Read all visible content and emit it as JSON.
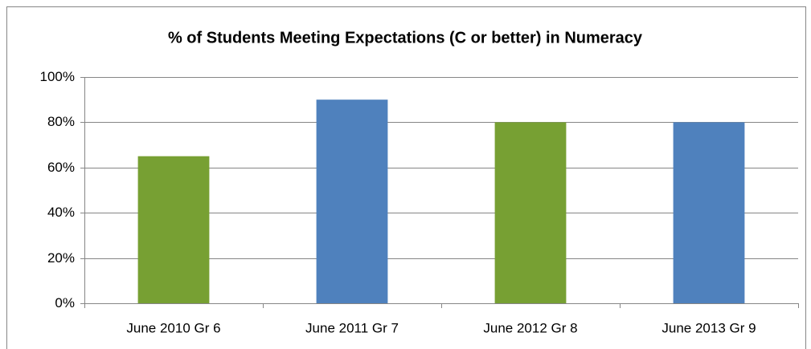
{
  "chart_data": {
    "type": "bar",
    "title": "% of Students Meeting Expectations (C or better) in Numeracy",
    "categories": [
      "June 2010 Gr 6",
      "June 2011 Gr 7",
      "June 2012 Gr 8",
      "June 2013 Gr 9"
    ],
    "values": [
      65,
      90,
      80,
      80
    ],
    "colors": [
      "#77a033",
      "#4f81bd",
      "#77a033",
      "#4f81bd"
    ],
    "ylim": [
      0,
      100
    ],
    "yticks": [
      {
        "value": 0,
        "label": "0%"
      },
      {
        "value": 20,
        "label": "20%"
      },
      {
        "value": 40,
        "label": "40%"
      },
      {
        "value": 60,
        "label": "60%"
      },
      {
        "value": 80,
        "label": "80%"
      },
      {
        "value": 100,
        "label": "100%"
      }
    ],
    "grid": true
  }
}
